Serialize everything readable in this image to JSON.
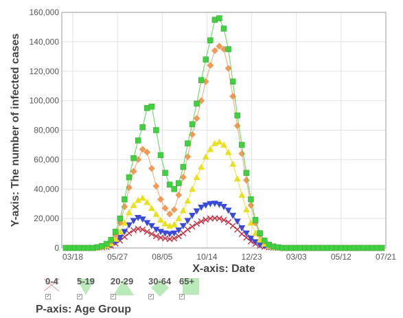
{
  "chart_data": {
    "type": "line",
    "ylabel": "Y-axis: The number of infected cases",
    "xlabel": "X-axis: Date",
    "legend_title": "P-axis: Age Group",
    "ylim": [
      0,
      160000
    ],
    "y_ticks": [
      "0",
      "20,000",
      "40,000",
      "60,000",
      "80,000",
      "100,000",
      "120,000",
      "140,000",
      "160,000"
    ],
    "x_ticks": [
      "03/18",
      "05/27",
      "08/05",
      "10/14",
      "12/23",
      "03/03",
      "05/12",
      "07/21"
    ],
    "grid": true,
    "legend_position": "bottom-left",
    "x": [
      "03/18",
      "03/25",
      "04/01",
      "04/08",
      "04/15",
      "04/22",
      "04/29",
      "05/06",
      "05/13",
      "05/20",
      "05/27",
      "06/03",
      "06/10",
      "06/17",
      "06/24",
      "07/01",
      "07/08",
      "07/15",
      "07/22",
      "07/29",
      "08/05",
      "08/12",
      "08/19",
      "08/26",
      "09/02",
      "09/09",
      "09/16",
      "09/23",
      "09/30",
      "10/07",
      "10/14",
      "10/21",
      "10/28",
      "11/04",
      "11/11",
      "11/18",
      "11/25",
      "12/02",
      "12/09",
      "12/16",
      "12/23",
      "12/30",
      "01/06",
      "01/13",
      "01/20",
      "01/27",
      "02/03",
      "02/10",
      "02/17",
      "02/24",
      "03/03",
      "03/10",
      "03/17",
      "03/24",
      "03/31",
      "04/07",
      "04/14",
      "04/21",
      "04/28",
      "05/05",
      "05/12",
      "05/19",
      "05/26",
      "06/02",
      "06/09",
      "06/16",
      "06/23",
      "06/30",
      "07/07",
      "07/14",
      "07/21"
    ],
    "series": [
      {
        "name": "0-4",
        "color": "#c03040",
        "marker": "x",
        "values": [
          0,
          0,
          0,
          0,
          0,
          0,
          0,
          100,
          300,
          700,
          1500,
          3000,
          5000,
          7500,
          10000,
          12000,
          13000,
          12500,
          11000,
          9500,
          8000,
          7000,
          6500,
          6000,
          6500,
          8000,
          10000,
          12500,
          14500,
          16500,
          18000,
          19200,
          20000,
          20200,
          20000,
          19000,
          17500,
          15000,
          12500,
          9500,
          7000,
          4500,
          2800,
          1500,
          800,
          400,
          200,
          100,
          0,
          0,
          0,
          0,
          0,
          0,
          0,
          0,
          0,
          0,
          0,
          0,
          0,
          0,
          0,
          0,
          0,
          0,
          0,
          0,
          0,
          0,
          0
        ]
      },
      {
        "name": "5-19",
        "color": "#3a4ad8",
        "marker": "triangle-down",
        "values": [
          0,
          0,
          0,
          0,
          0,
          0,
          0,
          150,
          400,
          1000,
          2000,
          4000,
          7000,
          11000,
          15500,
          18500,
          20500,
          19500,
          17000,
          15000,
          12500,
          11000,
          10000,
          9500,
          10000,
          12000,
          15000,
          18500,
          22000,
          25000,
          27500,
          29000,
          30000,
          30200,
          29500,
          28000,
          25500,
          22000,
          18000,
          13500,
          10000,
          6500,
          4000,
          2200,
          1200,
          600,
          300,
          150,
          0,
          0,
          0,
          0,
          0,
          0,
          0,
          0,
          0,
          0,
          0,
          0,
          0,
          0,
          0,
          0,
          0,
          0,
          0,
          0,
          0,
          0,
          0
        ]
      },
      {
        "name": "20-29",
        "color": "#e8e020",
        "marker": "triangle",
        "values": [
          0,
          0,
          0,
          0,
          0,
          0,
          0,
          250,
          700,
          1500,
          3000,
          6000,
          11000,
          17000,
          24000,
          29000,
          32500,
          34000,
          31000,
          27000,
          23000,
          19000,
          16500,
          15000,
          16000,
          20000,
          25500,
          32000,
          40000,
          48000,
          55000,
          62000,
          67000,
          71000,
          72000,
          70000,
          65000,
          57000,
          47000,
          36000,
          26000,
          17000,
          10000,
          5500,
          2800,
          1300,
          600,
          250,
          0,
          0,
          0,
          0,
          0,
          0,
          0,
          0,
          0,
          0,
          0,
          0,
          0,
          0,
          0,
          0,
          0,
          0,
          0,
          0,
          0,
          0,
          0
        ]
      },
      {
        "name": "30-64",
        "color": "#f09a5a",
        "marker": "diamond",
        "values": [
          0,
          0,
          0,
          0,
          0,
          0,
          0,
          400,
          1000,
          2200,
          4500,
          9000,
          17000,
          28000,
          41000,
          52000,
          60000,
          67000,
          65000,
          54000,
          42000,
          33000,
          27000,
          23000,
          26000,
          36000,
          48000,
          62000,
          77000,
          88000,
          100000,
          113000,
          124000,
          134000,
          137000,
          135000,
          122000,
          103000,
          83000,
          64000,
          46000,
          29000,
          17000,
          9000,
          4500,
          2000,
          900,
          400,
          0,
          0,
          0,
          0,
          0,
          0,
          0,
          0,
          0,
          0,
          0,
          0,
          0,
          0,
          0,
          0,
          0,
          0,
          0,
          0,
          0,
          0,
          0
        ]
      },
      {
        "name": "65+",
        "color": "#40d040",
        "marker": "square",
        "values": [
          0,
          0,
          0,
          0,
          0,
          0,
          0,
          500,
          1300,
          2800,
          5500,
          11000,
          20000,
          33000,
          48000,
          61000,
          73000,
          82000,
          95000,
          96000,
          80000,
          63000,
          51000,
          43000,
          40000,
          44000,
          55000,
          71000,
          84000,
          98000,
          114000,
          128000,
          141000,
          155000,
          156000,
          149000,
          135000,
          113000,
          90000,
          70000,
          51000,
          33000,
          19000,
          10000,
          5000,
          2200,
          1000,
          400,
          0,
          0,
          0,
          0,
          0,
          0,
          0,
          0,
          0,
          0,
          0,
          0,
          0,
          0,
          0,
          0,
          0,
          0,
          0,
          0,
          0,
          0,
          0
        ]
      }
    ]
  }
}
